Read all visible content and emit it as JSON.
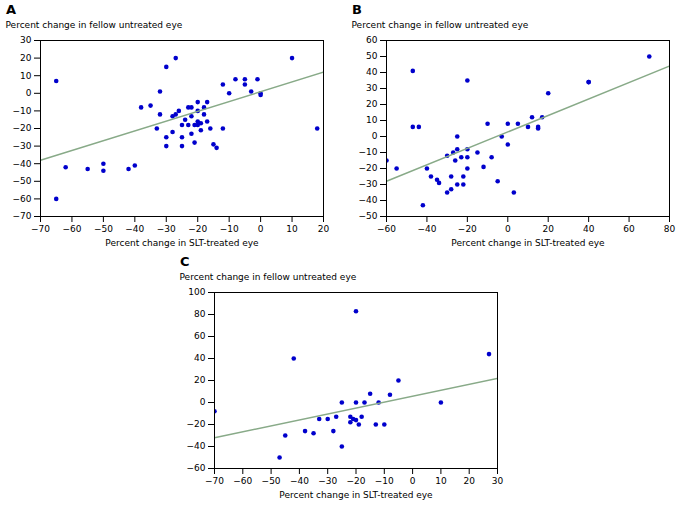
{
  "chart_data": [
    {
      "type": "scatter",
      "title": "A",
      "x_label": "Percent change in SLT-treated eye",
      "y_label": "Percent change in fellow untreated eye",
      "xlim": [
        -70,
        20
      ],
      "ylim": [
        -70,
        30
      ],
      "xticks": [
        -70,
        -60,
        -50,
        -40,
        -30,
        -20,
        -10,
        0,
        10,
        20
      ],
      "yticks": [
        -70,
        -60,
        -50,
        -40,
        -30,
        -20,
        -10,
        0,
        10,
        20,
        30
      ],
      "grid": false,
      "series": [
        {
          "type": "scatter",
          "color": "#0000cc",
          "x": [
            -65,
            -65,
            -62,
            -55,
            -50,
            -50,
            -42,
            -40,
            -38,
            -35,
            -33,
            -32,
            -32,
            -30,
            -30,
            -30,
            -28,
            -28,
            -27,
            -27,
            -26,
            -25,
            -25,
            -25,
            -24,
            -23,
            -23,
            -22,
            -22,
            -22,
            -21,
            -21,
            -20,
            -20,
            -20,
            -20,
            -19,
            -19,
            -18,
            -18,
            -17,
            -17,
            -16,
            -15,
            -14,
            -12,
            -12,
            -10,
            -8,
            -5,
            -5,
            -3,
            -1,
            0,
            0,
            10,
            18
          ],
          "values": [
            -60,
            7,
            -42,
            -43,
            -44,
            -40,
            -43,
            -41,
            -8,
            -7,
            -20,
            -12,
            1,
            -30,
            -25,
            15,
            -13,
            -22,
            -12,
            20,
            -10,
            -18,
            -25,
            -30,
            -15,
            -8,
            -18,
            -8,
            -13,
            -23,
            -18,
            -28,
            -10,
            -16,
            -18,
            -5,
            -17,
            -21,
            -12,
            -8,
            -5,
            -16,
            -20,
            -29,
            -31,
            5,
            -20,
            0,
            8,
            5,
            8,
            1,
            8,
            0,
            -1,
            20,
            -20
          ]
        },
        {
          "type": "line",
          "color": "#88aa88",
          "x": [
            -70,
            20
          ],
          "values": [
            -38.0,
            12.0
          ]
        }
      ]
    },
    {
      "type": "scatter",
      "title": "B",
      "x_label": "Percent change in SLT-treated eye",
      "y_label": "Percent change in fellow untreated eye",
      "xlim": [
        -60,
        80
      ],
      "ylim": [
        -50,
        60
      ],
      "xticks": [
        -60,
        -40,
        -20,
        0,
        20,
        40,
        60,
        80
      ],
      "yticks": [
        -50,
        -40,
        -30,
        -20,
        -10,
        0,
        10,
        20,
        30,
        40,
        50,
        60
      ],
      "grid": false,
      "series": [
        {
          "type": "scatter",
          "color": "#0000cc",
          "x": [
            -60,
            -55,
            -47,
            -47,
            -44,
            -42,
            -40,
            -38,
            -35,
            -34,
            -30,
            -30,
            -28,
            -28,
            -27,
            -26,
            -25,
            -25,
            -25,
            -23,
            -22,
            -22,
            -20,
            -20,
            -20,
            -20,
            -15,
            -12,
            -10,
            -8,
            -5,
            -3,
            0,
            0,
            3,
            5,
            10,
            12,
            15,
            15,
            17,
            20,
            40,
            40,
            70
          ],
          "values": [
            -15,
            -20,
            41,
            6,
            6,
            -43,
            -20,
            -25,
            -27,
            -29,
            -12,
            -35,
            -25,
            -33,
            -10,
            -15,
            -30,
            0,
            -8,
            -13,
            -25,
            -30,
            -13,
            -8,
            35,
            -20,
            -10,
            -19,
            8,
            -13,
            -28,
            0,
            -5,
            8,
            -35,
            8,
            6,
            12,
            6,
            5,
            12,
            27,
            34,
            34,
            50
          ]
        },
        {
          "type": "line",
          "color": "#88aa88",
          "x": [
            -60,
            80
          ],
          "values": [
            -28.0,
            44.0
          ]
        }
      ]
    },
    {
      "type": "scatter",
      "title": "C",
      "x_label": "Percent change in SLT-treated eye",
      "y_label": "Percent change in fellow untreated eye",
      "xlim": [
        -70,
        30
      ],
      "ylim": [
        -60,
        100
      ],
      "xticks": [
        -70,
        -60,
        -50,
        -40,
        -30,
        -20,
        -10,
        0,
        10,
        20,
        30
      ],
      "yticks": [
        -60,
        -40,
        -20,
        0,
        20,
        40,
        60,
        80,
        100
      ],
      "grid": false,
      "series": [
        {
          "type": "scatter",
          "color": "#0000cc",
          "x": [
            -70,
            -47,
            -45,
            -42,
            -38,
            -35,
            -33,
            -30,
            -28,
            -27,
            -25,
            -25,
            -22,
            -22,
            -21,
            -20,
            -20,
            -20,
            -19,
            -18,
            -17,
            -15,
            -13,
            -12,
            -10,
            -8,
            -5,
            10,
            27
          ],
          "values": [
            -8,
            -50,
            -30,
            40,
            -26,
            -28,
            -15,
            -15,
            -26,
            -13,
            -40,
            0,
            -18,
            -13,
            -15,
            83,
            0,
            -16,
            -20,
            -13,
            0,
            8,
            -20,
            0,
            -20,
            7,
            20,
            0,
            44
          ]
        },
        {
          "type": "line",
          "color": "#88aa88",
          "x": [
            -70,
            30
          ],
          "values": [
            -32.0,
            22.0
          ]
        }
      ]
    }
  ]
}
